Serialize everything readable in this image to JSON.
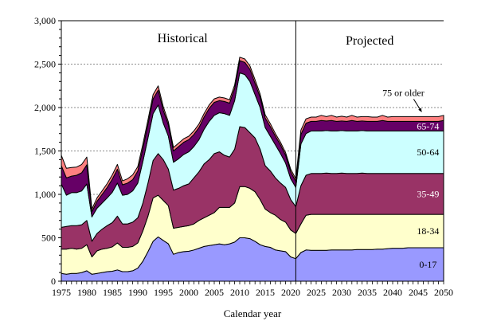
{
  "chart_data": {
    "type": "area",
    "stacked": true,
    "title": "",
    "xlabel": "Calendar year",
    "ylabel": "",
    "xlim": [
      1975,
      2050
    ],
    "ylim": [
      0,
      3000
    ],
    "grid": "horizontal-dashed",
    "y_ticks": [
      0,
      500,
      1000,
      1500,
      2000,
      2500,
      3000
    ],
    "y_tick_labels": [
      "0",
      "500",
      "1,000",
      "1,500",
      "2,000",
      "2,500",
      "3,000"
    ],
    "x_ticks": [
      1975,
      1980,
      1985,
      1990,
      1995,
      2000,
      2005,
      2010,
      2015,
      2020,
      2025,
      2030,
      2035,
      2040,
      2045,
      2050
    ],
    "x_tick_labels": [
      "1975",
      "1980",
      "1985",
      "1990",
      "1995",
      "2000",
      "2005",
      "2010",
      "2015",
      "2020",
      "2025",
      "2030",
      "2035",
      "2040",
      "2045",
      "2050"
    ],
    "divider_year": 2021,
    "section_labels": {
      "historical": "Historical",
      "projected": "Projected"
    },
    "annotation": {
      "text": "75 or older",
      "points_to_series": "75 or older",
      "year": 2046
    },
    "x": [
      1975,
      1976,
      1977,
      1978,
      1979,
      1980,
      1981,
      1982,
      1983,
      1984,
      1985,
      1986,
      1987,
      1988,
      1989,
      1990,
      1991,
      1992,
      1993,
      1994,
      1995,
      1996,
      1997,
      1998,
      1999,
      2000,
      2001,
      2002,
      2003,
      2004,
      2005,
      2006,
      2007,
      2008,
      2009,
      2010,
      2011,
      2012,
      2013,
      2014,
      2015,
      2016,
      2017,
      2018,
      2019,
      2020,
      2021,
      2022,
      2023,
      2024,
      2025,
      2026,
      2027,
      2028,
      2029,
      2030,
      2031,
      2032,
      2033,
      2034,
      2035,
      2036,
      2037,
      2038,
      2039,
      2040,
      2041,
      2042,
      2043,
      2044,
      2045,
      2046,
      2047,
      2048,
      2049,
      2050
    ],
    "series": [
      {
        "name": "0-17",
        "color": "#9999FF",
        "label_color": "#000000",
        "values": [
          90,
          80,
          90,
          90,
          100,
          120,
          80,
          90,
          100,
          110,
          115,
          130,
          110,
          110,
          120,
          150,
          230,
          340,
          460,
          510,
          470,
          430,
          310,
          330,
          340,
          345,
          360,
          380,
          400,
          410,
          420,
          430,
          420,
          430,
          450,
          500,
          500,
          490,
          460,
          420,
          400,
          390,
          360,
          350,
          340,
          280,
          260,
          330,
          360,
          355,
          355,
          355,
          355,
          360,
          360,
          360,
          360,
          360,
          365,
          365,
          365,
          365,
          370,
          370,
          375,
          380,
          380,
          380,
          385,
          385,
          385,
          385,
          385,
          385,
          385,
          385
        ]
      },
      {
        "name": "18-34",
        "color": "#FFFFCC",
        "label_color": "#000000",
        "values": [
          280,
          290,
          290,
          280,
          280,
          300,
          200,
          260,
          270,
          270,
          280,
          310,
          280,
          280,
          280,
          290,
          350,
          410,
          500,
          480,
          460,
          440,
          300,
          290,
          290,
          295,
          300,
          320,
          330,
          350,
          370,
          420,
          430,
          420,
          450,
          590,
          590,
          580,
          570,
          520,
          430,
          400,
          400,
          360,
          340,
          310,
          290,
          330,
          400,
          415,
          415,
          415,
          415,
          410,
          410,
          410,
          410,
          410,
          405,
          405,
          405,
          405,
          400,
          400,
          395,
          390,
          390,
          390,
          385,
          385,
          385,
          385,
          385,
          385,
          385,
          385
        ]
      },
      {
        "name": "35-49",
        "color": "#993366",
        "label_color": "#FFFFFF",
        "values": [
          250,
          260,
          260,
          270,
          270,
          280,
          180,
          200,
          230,
          260,
          280,
          310,
          270,
          270,
          280,
          290,
          320,
          380,
          430,
          480,
          470,
          420,
          440,
          450,
          470,
          480,
          530,
          560,
          620,
          640,
          680,
          640,
          600,
          580,
          620,
          690,
          680,
          640,
          620,
          580,
          500,
          480,
          430,
          420,
          400,
          350,
          310,
          440,
          460,
          470,
          470,
          470,
          475,
          470,
          470,
          475,
          470,
          470,
          470,
          475,
          470,
          470,
          470,
          470,
          470,
          470,
          470,
          470,
          470,
          470,
          470,
          470,
          470,
          470,
          470,
          470
        ]
      },
      {
        "name": "50-64",
        "color": "#CCFFFF",
        "label_color": "#000000",
        "values": [
          500,
          360,
          380,
          380,
          390,
          420,
          280,
          290,
          300,
          320,
          350,
          380,
          330,
          340,
          360,
          400,
          480,
          520,
          540,
          560,
          420,
          380,
          320,
          340,
          360,
          370,
          360,
          370,
          400,
          440,
          440,
          450,
          480,
          480,
          560,
          620,
          610,
          590,
          500,
          480,
          440,
          400,
          380,
          340,
          280,
          240,
          220,
          480,
          480,
          490,
          490,
          490,
          490,
          490,
          490,
          490,
          490,
          490,
          490,
          490,
          490,
          490,
          490,
          490,
          490,
          490,
          490,
          490,
          490,
          490,
          490,
          490,
          490,
          490,
          490,
          490
        ]
      },
      {
        "name": "65-74",
        "color": "#660066",
        "label_color": "#FFFFFF",
        "values": [
          210,
          200,
          190,
          200,
          210,
          220,
          60,
          80,
          100,
          120,
          150,
          160,
          120,
          130,
          130,
          140,
          150,
          160,
          170,
          170,
          150,
          130,
          130,
          140,
          140,
          140,
          140,
          140,
          140,
          150,
          150,
          140,
          140,
          140,
          140,
          140,
          140,
          140,
          130,
          120,
          110,
          110,
          100,
          100,
          90,
          80,
          70,
          110,
          120,
          110,
          110,
          120,
          110,
          120,
          110,
          110,
          110,
          120,
          110,
          110,
          110,
          110,
          110,
          120,
          110,
          110,
          110,
          110,
          110,
          110,
          110,
          110,
          110,
          110,
          110,
          120
        ]
      },
      {
        "name": "75 or older",
        "color": "#FF8080",
        "label_color": "#000000",
        "values": [
          120,
          110,
          100,
          95,
          95,
          90,
          30,
          40,
          40,
          45,
          50,
          55,
          45,
          50,
          55,
          50,
          50,
          50,
          50,
          50,
          40,
          35,
          40,
          40,
          40,
          40,
          40,
          40,
          40,
          40,
          40,
          40,
          40,
          40,
          40,
          40,
          40,
          40,
          40,
          35,
          35,
          35,
          30,
          30,
          30,
          30,
          30,
          50,
          50,
          50,
          50,
          60,
          50,
          60,
          50,
          55,
          50,
          60,
          50,
          50,
          55,
          50,
          50,
          60,
          50,
          55,
          55,
          55,
          55,
          55,
          55,
          55,
          55,
          55,
          55,
          60
        ]
      }
    ]
  }
}
